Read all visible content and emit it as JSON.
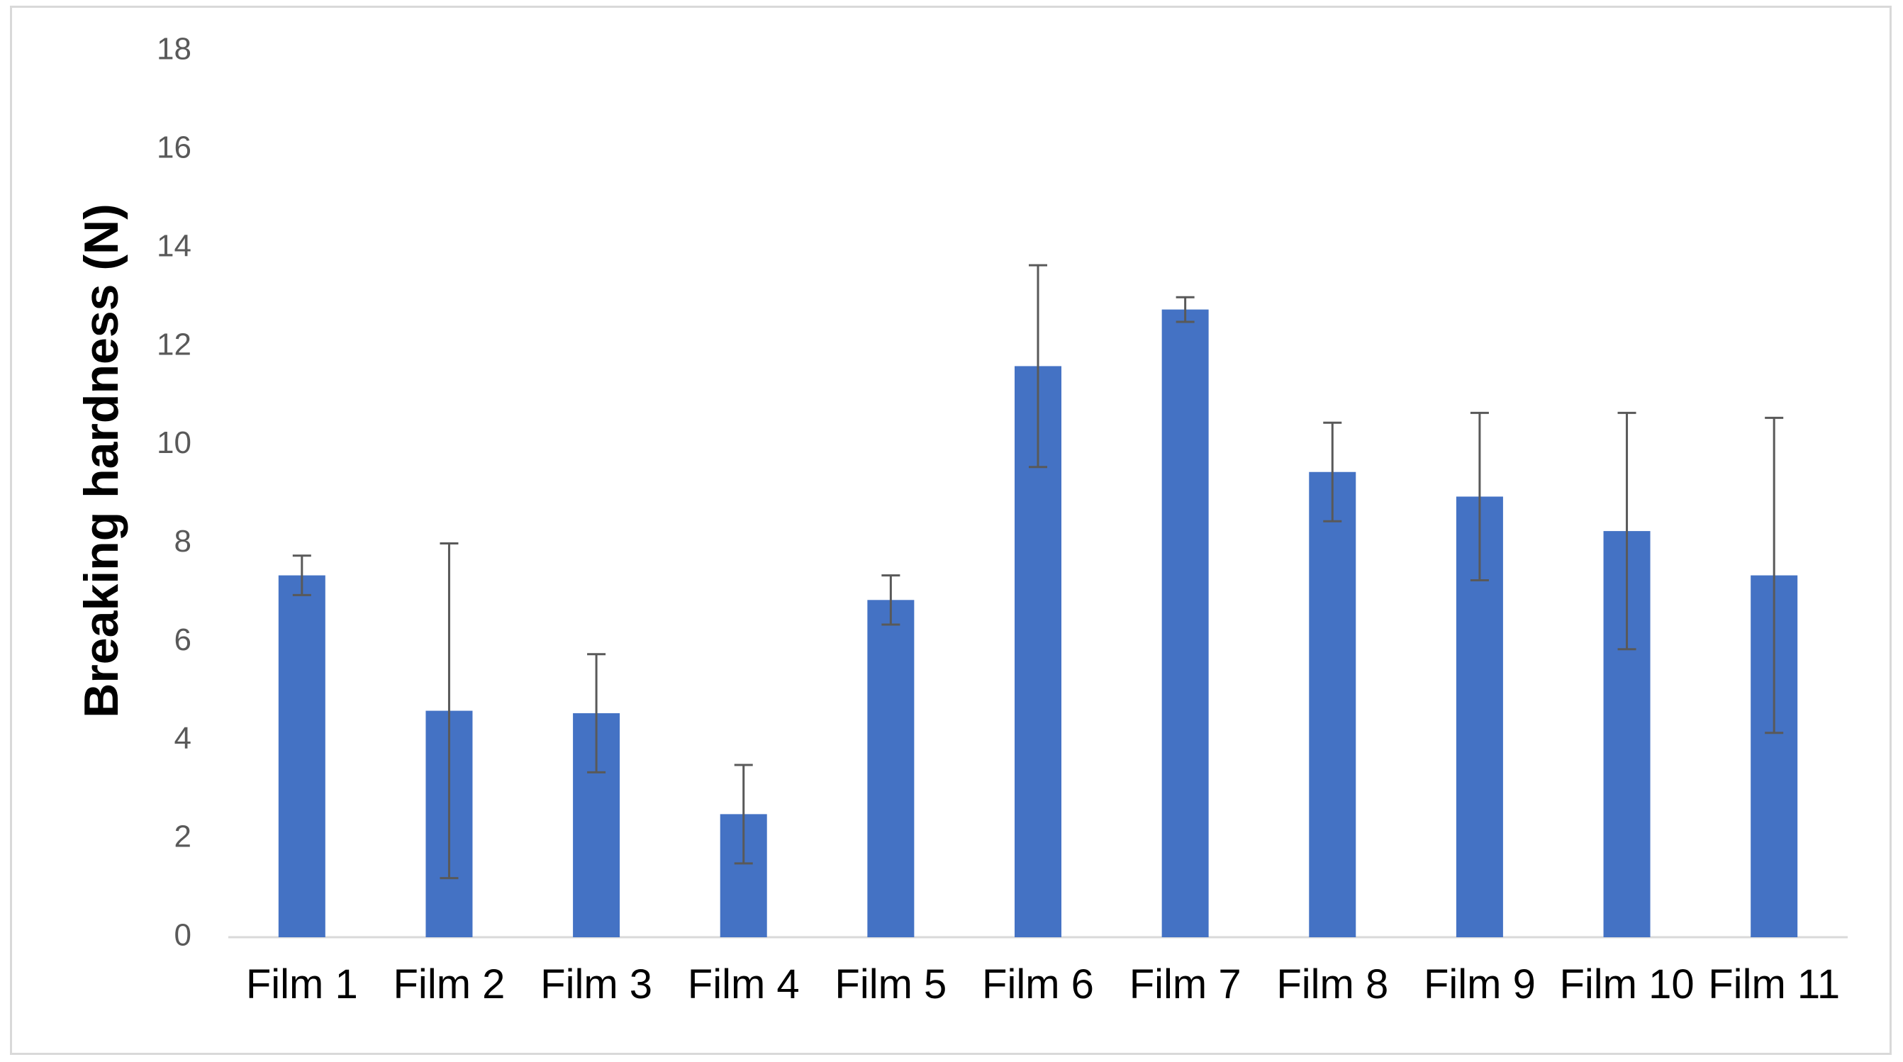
{
  "chart_data": {
    "type": "bar",
    "title": "",
    "xlabel": "",
    "ylabel": "Breaking hardness (N)",
    "ylim": [
      0,
      18
    ],
    "yticks": [
      0,
      2,
      4,
      6,
      8,
      10,
      12,
      14,
      16,
      18
    ],
    "grid": false,
    "legend": "none",
    "categories": [
      "Film 1",
      "Film 2",
      "Film 3",
      "Film 4",
      "Film 5",
      "Film 6",
      "Film 7",
      "Film 8",
      "Film 9",
      "Film 10",
      "Film 11"
    ],
    "series": [
      {
        "values": [
          7.35,
          4.6,
          4.55,
          2.5,
          6.85,
          11.6,
          12.75,
          9.45,
          8.95,
          8.25,
          7.35
        ],
        "errors": [
          0.4,
          3.4,
          1.2,
          1.0,
          0.5,
          2.05,
          0.25,
          1.0,
          1.7,
          2.4,
          3.2
        ],
        "color": "#4472c4"
      }
    ],
    "error_bar_color": "#595959",
    "axis_color": "#d9d9d9"
  }
}
